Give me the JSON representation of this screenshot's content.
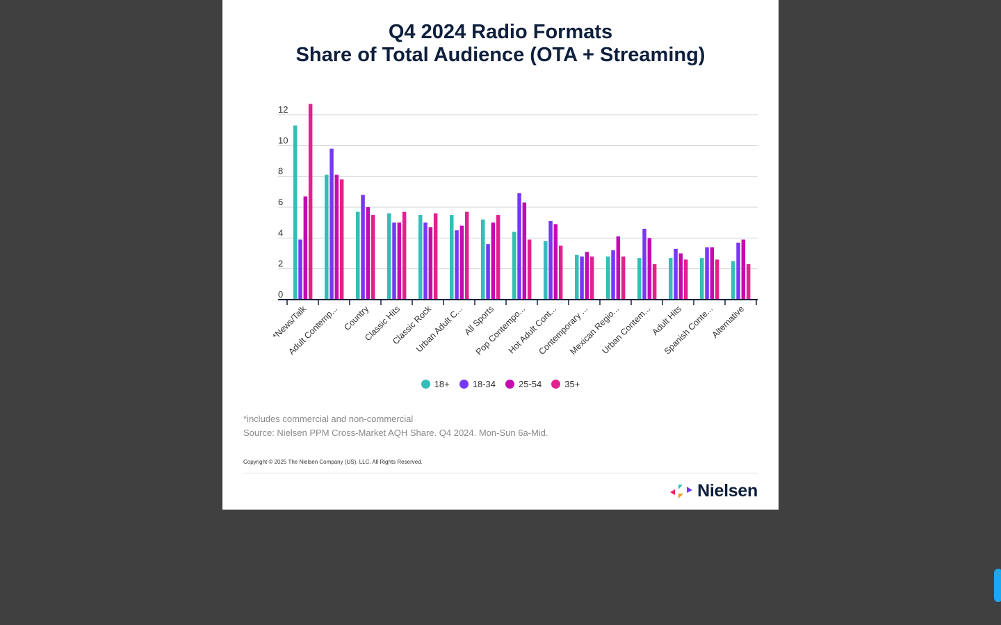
{
  "title_lines": [
    "Q4 2024 Radio Formats",
    "Share of Total Audience (OTA + Streaming)"
  ],
  "chart_data": {
    "type": "bar",
    "title": "Q4 2024 Radio Formats Share of Total Audience (OTA + Streaming)",
    "xlabel": "",
    "ylabel": "",
    "ylim": [
      0,
      12
    ],
    "yticks": [
      0,
      2,
      4,
      6,
      8,
      10,
      12
    ],
    "ytick_labels": [
      "0",
      "2",
      "4",
      "6",
      "8",
      "10",
      "12"
    ],
    "grid": true,
    "legend_position": "bottom",
    "categories": [
      "*News/Talk",
      "Adult Contemp...",
      "Country",
      "Classic Hits",
      "Classic Rock",
      "Urban Adult C...",
      "All Sports",
      "Pop Contempo...",
      "Hot Adult Cont...",
      "Contemporary ...",
      "Mexican Regio...",
      "Urban Contem...",
      "Adult Hits",
      "Spanish Conte...",
      "Alternative"
    ],
    "series": [
      {
        "name": "18+",
        "color": "#35bdb8",
        "values": [
          11.3,
          8.1,
          5.7,
          5.6,
          5.5,
          5.5,
          5.2,
          4.4,
          3.8,
          2.9,
          2.8,
          2.7,
          2.7,
          2.7,
          2.5
        ]
      },
      {
        "name": "18-34",
        "color": "#7638f5",
        "values": [
          3.9,
          9.8,
          6.8,
          5.0,
          5.0,
          4.5,
          3.6,
          6.9,
          5.1,
          2.8,
          3.2,
          4.6,
          3.3,
          3.4,
          3.7
        ]
      },
      {
        "name": "25-54",
        "color": "#c40bb0",
        "values": [
          6.7,
          8.1,
          6.0,
          5.0,
          4.7,
          4.8,
          5.0,
          6.3,
          4.9,
          3.1,
          4.1,
          4.0,
          3.0,
          3.4,
          3.9
        ]
      },
      {
        "name": "35+",
        "color": "#e3218e",
        "values": [
          12.7,
          7.8,
          5.5,
          5.7,
          5.6,
          5.7,
          5.5,
          3.9,
          3.5,
          2.8,
          2.8,
          2.3,
          2.6,
          2.6,
          2.3
        ]
      }
    ]
  },
  "footnotes": {
    "note": "*includes commercial and non-commercial",
    "source": "Source: Nielsen PPM Cross-Market AQH Share. Q4 2024. Mon-Sun 6a-Mid.",
    "copyright": "Copyright © 2025 The Nielsen Company (US), LLC. All Rights Reserved."
  },
  "logo": {
    "text": "Nielsen"
  },
  "colors": {
    "title": "#0d1f3c",
    "axis": "#0d1f3c",
    "grid": "#cfd3d8",
    "scrollbar": "#1da6f2"
  }
}
